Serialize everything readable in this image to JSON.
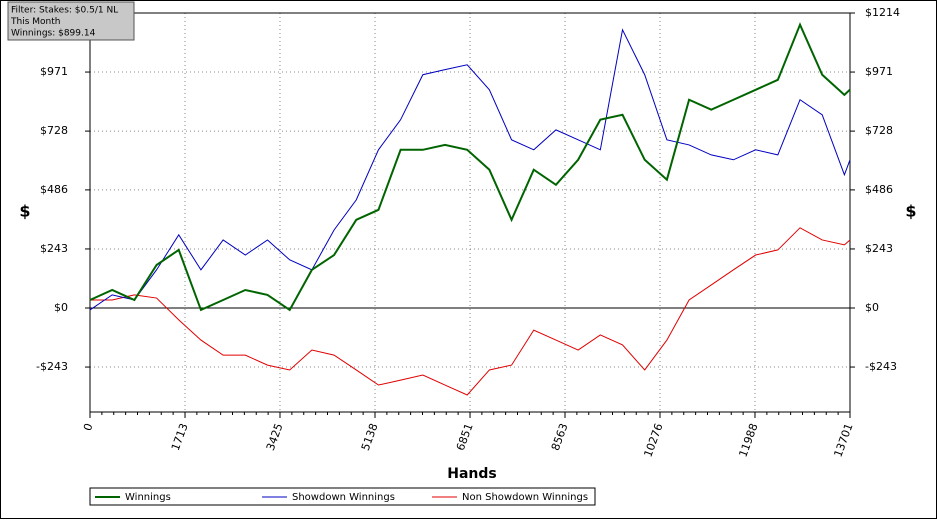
{
  "chart_data": {
    "type": "line",
    "annotations": [
      "Filter: Stakes: $0.5/1 NL",
      "This Month",
      "Winnings: $899.14"
    ],
    "x_label": "Hands",
    "y_label": "$",
    "y2_label": "$",
    "x": [
      0,
      400,
      800,
      1200,
      1600,
      2000,
      2400,
      2800,
      3200,
      3600,
      4000,
      4400,
      4800,
      5200,
      5600,
      6000,
      6400,
      6800,
      7200,
      7600,
      8000,
      8400,
      8800,
      9200,
      9600,
      10000,
      10400,
      10800,
      11200,
      11600,
      12000,
      12400,
      12800,
      13200,
      13600,
      13701
    ],
    "series": [
      {
        "name": "Winnings",
        "color": "#006400",
        "values": [
          33,
          74,
          33,
          177,
          239,
          -8,
          33,
          74,
          54,
          -8,
          157,
          218,
          363,
          404,
          651,
          651,
          671,
          651,
          569,
          363,
          569,
          507,
          610,
          775,
          795,
          610,
          528,
          857,
          816,
          857,
          898,
          939,
          1166,
          960,
          877,
          899
        ]
      },
      {
        "name": "Showdown Winnings",
        "color": "#0000c0",
        "values": [
          -8,
          54,
          33,
          157,
          301,
          157,
          280,
          218,
          280,
          198,
          157,
          321,
          445,
          651,
          775,
          960,
          981,
          1001,
          898,
          692,
          651,
          733,
          692,
          651,
          1145,
          960,
          692,
          671,
          630,
          610,
          651,
          630,
          857,
          795,
          548,
          610
        ]
      },
      {
        "name": "Non Showdown Winnings",
        "color": "#e00000",
        "values": [
          33,
          33,
          54,
          41,
          -49,
          -132,
          -194,
          -194,
          -235,
          -255,
          -173,
          -194,
          -255,
          -317,
          -297,
          -276,
          -317,
          -358,
          -255,
          -235,
          -91,
          -132,
          -173,
          -111,
          -152,
          -255,
          -132,
          33,
          95,
          157,
          218,
          239,
          330,
          280,
          260,
          280
        ]
      }
    ],
    "xlim": [
      0,
      13701
    ],
    "xticks": [
      0,
      1713,
      3425,
      5138,
      6851,
      8563,
      10276,
      11988,
      13701
    ],
    "ylim": [
      -428,
      1214
    ],
    "yticks": [
      {
        "value": 1214,
        "label": "$1214"
      },
      {
        "value": 971,
        "label": "$971"
      },
      {
        "value": 728,
        "label": "$728"
      },
      {
        "value": 486,
        "label": "$486"
      },
      {
        "value": 243,
        "label": "$243"
      },
      {
        "value": 0,
        "label": "$0"
      },
      {
        "value": -243,
        "label": "-$243"
      }
    ],
    "grid": true
  }
}
